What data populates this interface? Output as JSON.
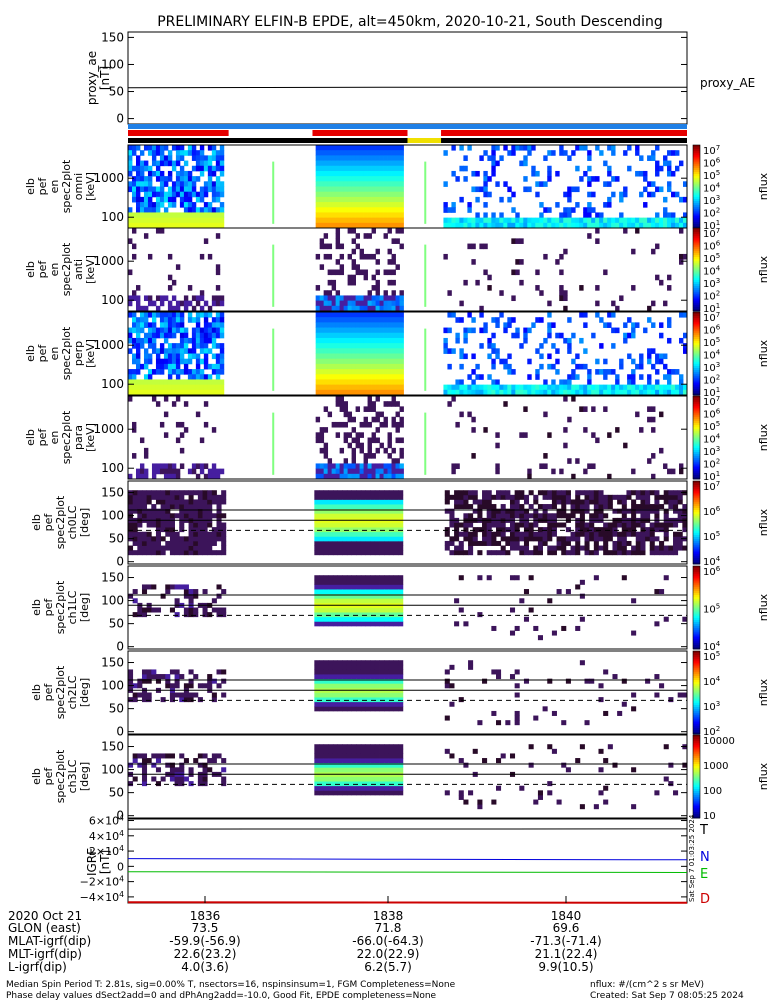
{
  "title": "PRELIMINARY ELFIN-B EPDE, alt=450km, 2020-10-21, South Descending",
  "colors": {
    "bar_blue": "#1f7fe6",
    "bar_red": "#e60000",
    "bar_black": "#000000",
    "bar_yellow": "#f0e000",
    "N": "#0000dd",
    "E": "#00bb00",
    "D": "#cc0000"
  },
  "panels": {
    "proxy": {
      "ylabel": [
        "proxy_ae",
        "[nT]"
      ],
      "yticks": [
        "150",
        "100",
        "50",
        "0"
      ],
      "legend": "proxy_AE"
    },
    "spec": [
      {
        "ylabel": [
          "elb",
          "pef",
          "en",
          "spec2plot",
          "omni",
          "[keV]"
        ],
        "yticks": [
          "1000",
          "100"
        ],
        "cbar": [
          "10^7",
          "10^6",
          "10^5",
          "10^4",
          "10^3",
          "10^2",
          "10^1"
        ],
        "cbar_label": "nflux"
      },
      {
        "ylabel": [
          "elb",
          "pef",
          "en",
          "spec2plot",
          "anti",
          "[keV]"
        ],
        "yticks": [
          "1000",
          "100"
        ],
        "cbar": [
          "10^7",
          "10^6",
          "10^5",
          "10^4",
          "10^3",
          "10^2",
          "10^1"
        ],
        "cbar_label": "nflux"
      },
      {
        "ylabel": [
          "elb",
          "pef",
          "en",
          "spec2plot",
          "perp",
          "[keV]"
        ],
        "yticks": [
          "1000",
          "100"
        ],
        "cbar": [
          "10^7",
          "10^6",
          "10^5",
          "10^4",
          "10^3",
          "10^2",
          "10^1"
        ],
        "cbar_label": "nflux"
      },
      {
        "ylabel": [
          "elb",
          "pef",
          "en",
          "spec2plot",
          "para",
          "[keV]"
        ],
        "yticks": [
          "1000",
          "100"
        ],
        "cbar": [
          "10^7",
          "10^6",
          "10^5",
          "10^4",
          "10^3",
          "10^2",
          "10^1"
        ],
        "cbar_label": "nflux"
      }
    ],
    "pa": [
      {
        "ylabel": [
          "elb",
          "pef",
          "spec2plot",
          "ch0LC",
          "[deg]"
        ],
        "yticks": [
          "150",
          "100",
          "50",
          "0"
        ],
        "cbar": [
          "10^7",
          "10^6",
          "10^5",
          "10^4"
        ],
        "cbar_label": "nflux"
      },
      {
        "ylabel": [
          "elb",
          "pef",
          "spec2plot",
          "ch1LC",
          "[deg]"
        ],
        "yticks": [
          "150",
          "100",
          "50",
          "0"
        ],
        "cbar": [
          "10^6",
          "10^5",
          "10^4"
        ],
        "cbar_label": "nflux"
      },
      {
        "ylabel": [
          "elb",
          "pef",
          "spec2plot",
          "ch2LC",
          "[deg]"
        ],
        "yticks": [
          "150",
          "100",
          "50",
          "0"
        ],
        "cbar": [
          "10^5",
          "10^4",
          "10^3",
          "10^2"
        ],
        "cbar_label": "nflux"
      },
      {
        "ylabel": [
          "elb",
          "pef",
          "spec2plot",
          "ch3LC",
          "[deg]"
        ],
        "yticks": [
          "150",
          "100",
          "50",
          "0"
        ],
        "cbar": [
          "10000",
          "1000",
          "100",
          "10"
        ],
        "cbar_label": "nflux"
      }
    ],
    "igrf": {
      "ylabel": [
        "IGRF",
        "[nT]"
      ],
      "yticks": [
        "6×10^4",
        "4×10^4",
        "2×10^4",
        "0",
        "−2×10^4",
        "−4×10^4"
      ],
      "legend": [
        "T",
        "N",
        "E",
        "D"
      ],
      "side_text": "Sat Sep  7 01:03:25 2024"
    }
  },
  "xaxis": {
    "row_labels": [
      "2020 Oct 21",
      "GLON (east)",
      "MLAT-igrf(dip)",
      "MLT-igrf(dip)",
      "L-igrf(dip)"
    ],
    "columns": [
      {
        "values": [
          "1836",
          "73.5",
          "-59.9(-56.9)",
          "22.6(23.2)",
          "4.0(3.6)"
        ]
      },
      {
        "values": [
          "1838",
          "71.8",
          "-66.0(-64.3)",
          "22.0(22.9)",
          "6.2(5.7)"
        ]
      },
      {
        "values": [
          "1840",
          "69.6",
          "-71.3(-71.4)",
          "21.1(22.4)",
          "9.9(10.5)"
        ]
      }
    ]
  },
  "footer": {
    "line1_left": "Median Spin Period T: 2.81s, sig=0.00% T, nsectors=16, nspinsinsum=1, FGM Completeness=None",
    "line2_left": "Phase delay values dSect2add=0 and dPhAng2add=-10.0, Good Fit, EPDE completeness=None",
    "line1_right": "nflux: #/(cm^2 s sr MeV)",
    "line2_right": "Created: Sat Sep  7 08:05:25 2024"
  },
  "chart_data": [
    {
      "type": "line",
      "title": "PRELIMINARY ELFIN-B EPDE, alt=450km, 2020-10-21, South Descending",
      "ylabel": "proxy_ae [nT]",
      "ylim": [
        -10,
        160
      ],
      "x_labels": [
        "1836",
        "1838",
        "1840"
      ],
      "series": [
        {
          "name": "proxy_AE",
          "values": [
            57,
            57.5,
            58,
            58,
            58
          ]
        }
      ]
    },
    {
      "type": "heatmap",
      "ylabel": "elb pef en spec2plot omni [keV]",
      "yscale": "log",
      "colorbar": "nflux"
    },
    {
      "type": "heatmap",
      "ylabel": "elb pef en spec2plot anti [keV]",
      "yscale": "log",
      "colorbar": "nflux"
    },
    {
      "type": "heatmap",
      "ylabel": "elb pef en spec2plot perp [keV]",
      "yscale": "log",
      "colorbar": "nflux"
    },
    {
      "type": "heatmap",
      "ylabel": "elb pef en spec2plot para [keV]",
      "yscale": "log",
      "colorbar": "nflux"
    },
    {
      "type": "heatmap",
      "ylabel": "elb pef spec2plot ch0LC [deg]",
      "ylim": [
        0,
        180
      ],
      "colorbar": "nflux"
    },
    {
      "type": "heatmap",
      "ylabel": "elb pef spec2plot ch1LC [deg]",
      "ylim": [
        0,
        180
      ],
      "colorbar": "nflux"
    },
    {
      "type": "heatmap",
      "ylabel": "elb pef spec2plot ch2LC [deg]",
      "ylim": [
        0,
        180
      ],
      "colorbar": "nflux"
    },
    {
      "type": "heatmap",
      "ylabel": "elb pef spec2plot ch3LC [deg]",
      "ylim": [
        0,
        180
      ],
      "colorbar": "nflux"
    },
    {
      "type": "line",
      "ylabel": "IGRF [nT]",
      "ylim": [
        -48000,
        62000
      ],
      "series": [
        {
          "name": "T",
          "values": [
            48800,
            48900,
            49000
          ]
        },
        {
          "name": "N",
          "values": [
            10200,
            9200,
            8600
          ]
        },
        {
          "name": "E",
          "values": [
            -7200,
            -7600,
            -8000
          ]
        },
        {
          "name": "D",
          "values": [
            -47000,
            -47400,
            -47800
          ]
        }
      ]
    }
  ]
}
